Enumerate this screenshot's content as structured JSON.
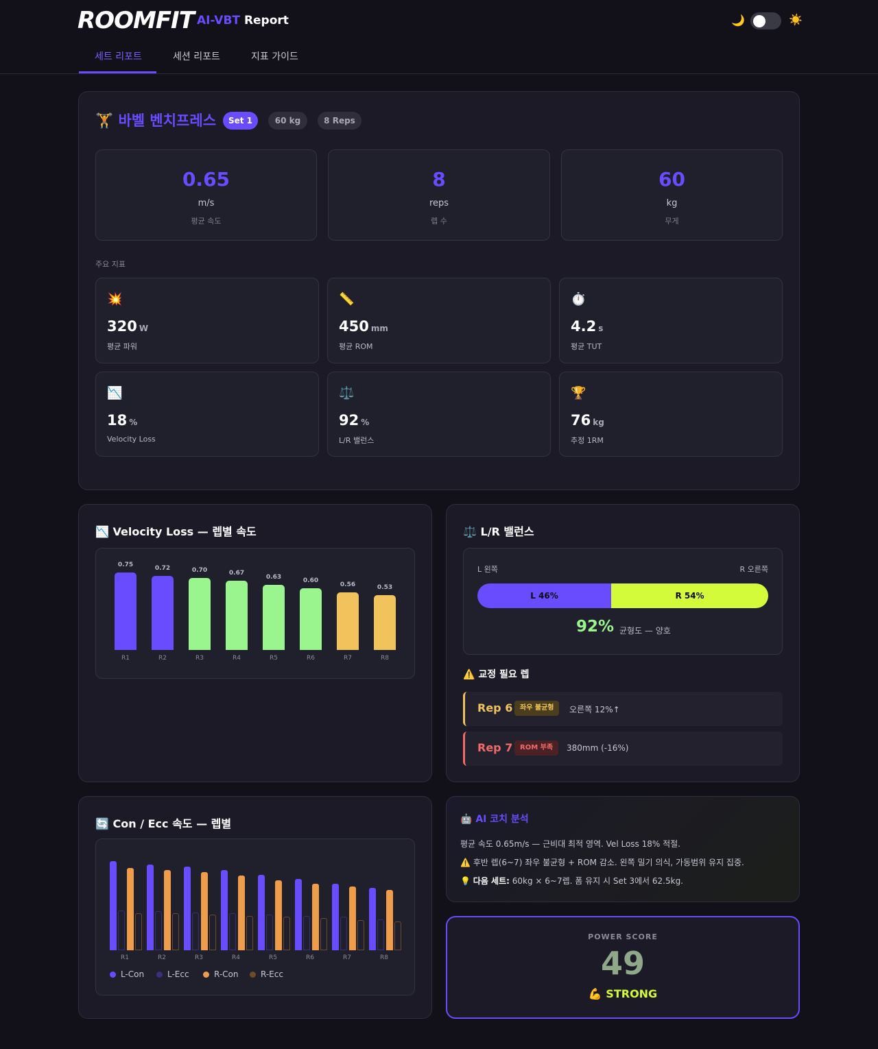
{
  "header": {
    "logo": "ROOMFIT",
    "subtitle_accent": "AI-VBT",
    "subtitle_rest": "Report",
    "theme_moon": "🌙",
    "theme_sun": "☀️",
    "tabs": [
      "세트 리포트",
      "세션 리포트",
      "지표 가이드"
    ]
  },
  "exercise": {
    "icon": "🏋️",
    "name": "바벨 벤치프레스",
    "set_badge": "Set 1",
    "weight_badge": "60 kg",
    "reps_badge": "8 Reps"
  },
  "summary": [
    {
      "value": "0.65",
      "unit": "m/s",
      "label": "평균 속도"
    },
    {
      "value": "8",
      "unit": "reps",
      "label": "렙 수"
    },
    {
      "value": "60",
      "unit": "kg",
      "label": "무게"
    }
  ],
  "metrics_title": "주요 지표",
  "metrics": [
    {
      "icon": "💥",
      "icon_name": "explosion-icon",
      "value": "320",
      "unit": "W",
      "label": "평균 파워"
    },
    {
      "icon": "📏",
      "icon_name": "ruler-icon",
      "value": "450",
      "unit": "mm",
      "label": "평균 ROM"
    },
    {
      "icon": "⏱️",
      "icon_name": "stopwatch-icon",
      "value": "4.2",
      "unit": "s",
      "label": "평균 TUT"
    },
    {
      "icon": "📉",
      "icon_name": "chart-down-icon",
      "value": "18",
      "unit": "%",
      "label": "Velocity Loss"
    },
    {
      "icon": "⚖️",
      "icon_name": "balance-scale-icon",
      "value": "92",
      "unit": "%",
      "label": "L/R 밸런스"
    },
    {
      "icon": "🏆",
      "icon_name": "trophy-icon",
      "value": "76",
      "unit": "kg",
      "label": "추정 1RM"
    }
  ],
  "velocity_card": {
    "icon": "📉",
    "title": "Velocity Loss — 렙별 속도"
  },
  "lr_card": {
    "icon": "⚖️",
    "title": "L/R 밸런스",
    "left_label": "L 왼쪽",
    "right_label": "R 오른쪽",
    "left_value": "L 46%",
    "right_value": "R 54%",
    "left_pct": 46,
    "balance_pct": "92%",
    "balance_note": "균형도 — 양호",
    "warn_icon": "⚠️",
    "warn_title": "교정 필요 렙",
    "fixes": [
      {
        "rep": "Rep 6",
        "tag": "좌우 불균형",
        "desc": "오른쪽 12%↑",
        "color": "#f0c35c",
        "tag_bg": "#4a3e1e"
      },
      {
        "rep": "Rep 7",
        "tag": "ROM 부족",
        "desc": "380mm (-16%)",
        "color": "#f26b6b",
        "tag_bg": "#4a2226"
      }
    ]
  },
  "conecc_card": {
    "icon": "🔄",
    "title": "Con / Ecc 속도 — 렙별"
  },
  "ai": {
    "icon": "🤖",
    "title": "AI 코치 분석",
    "line1": "평균 속도 0.65m/s — 근비대 최적 영역. Vel Loss 18% 적절.",
    "line2": "⚠️ 후반 렙(6~7) 좌우 불균형 + ROM 감소. 왼쪽 밀기 의식, 가동범위 유지 집중.",
    "line3_icon": "💡",
    "line3_bold": "다음 세트:",
    "line3_rest": " 60kg × 6~7렙. 폼 유지 시 Set 3에서 62.5kg."
  },
  "power": {
    "label": "POWER SCORE",
    "score": "49",
    "grade": "💪 STRONG"
  },
  "colors": {
    "accent": "#6a4cff",
    "green": "#9bf58e",
    "yellow": "#f0c35c",
    "lime": "#d4fb3a",
    "orange": "#ef9d4b"
  },
  "chart_data": [
    {
      "type": "bar",
      "title": "Velocity Loss — 렙별 속도",
      "categories": [
        "R1",
        "R2",
        "R3",
        "R4",
        "R5",
        "R6",
        "R7",
        "R8"
      ],
      "values": [
        0.75,
        0.72,
        0.7,
        0.67,
        0.63,
        0.6,
        0.56,
        0.53
      ],
      "value_labels": [
        "0.75",
        "0.72",
        "0.70",
        "0.67",
        "0.63",
        "0.60",
        "0.56",
        "0.53"
      ],
      "bar_colors": [
        "#6a4cff",
        "#6a4cff",
        "#9bf58e",
        "#9bf58e",
        "#9bf58e",
        "#9bf58e",
        "#f0c35c",
        "#f0c35c"
      ],
      "ylim": [
        0,
        0.75
      ],
      "grid": false
    },
    {
      "type": "bar",
      "title": "Con / Ecc 속도 — 렙별",
      "categories": [
        "R1",
        "R2",
        "R3",
        "R4",
        "R5",
        "R6",
        "R7",
        "R8"
      ],
      "series": [
        {
          "name": "L-Con",
          "color": "#6a4cff",
          "values": [
            0.8,
            0.77,
            0.75,
            0.72,
            0.68,
            0.64,
            0.6,
            0.56
          ]
        },
        {
          "name": "L-Ecc",
          "color": "#3a2f7a",
          "values": [
            0.36,
            0.35,
            0.34,
            0.33,
            0.32,
            0.31,
            0.3,
            0.28
          ]
        },
        {
          "name": "R-Con",
          "color": "#ef9d4b",
          "values": [
            0.74,
            0.72,
            0.7,
            0.67,
            0.63,
            0.6,
            0.57,
            0.54
          ]
        },
        {
          "name": "R-Ecc",
          "color": "#6e4a2c",
          "values": [
            0.33,
            0.33,
            0.32,
            0.31,
            0.3,
            0.29,
            0.27,
            0.26
          ]
        }
      ],
      "ylim": [
        0,
        0.8
      ],
      "legend": "bottom-left",
      "grid": false
    }
  ]
}
